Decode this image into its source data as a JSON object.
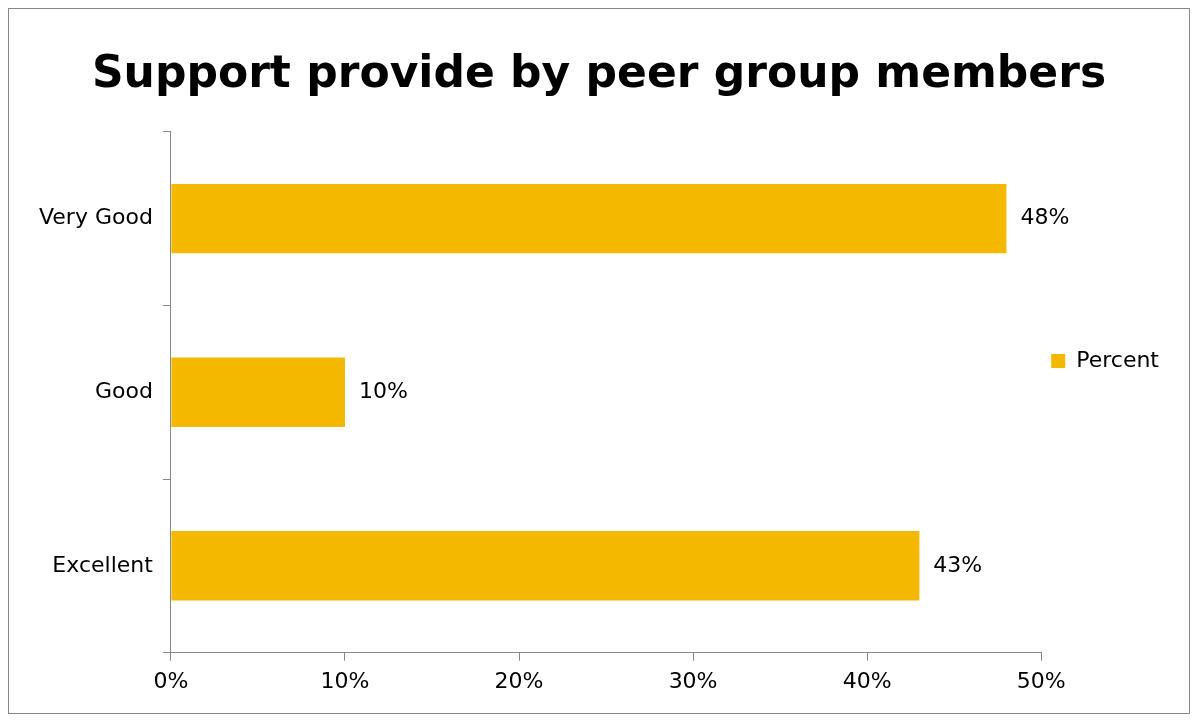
{
  "chart_data": {
    "type": "bar",
    "orientation": "horizontal",
    "title": "Support provide by peer group members",
    "categories": [
      "Very Good",
      "Good",
      "Excellent"
    ],
    "series": [
      {
        "name": "Percent",
        "color": "#f5b800",
        "values": [
          48,
          10,
          43
        ],
        "value_labels": [
          "48%",
          "10%",
          "43%"
        ]
      }
    ],
    "xlim": [
      0,
      50
    ],
    "xticks": [
      {
        "value": 0,
        "label": "0%"
      },
      {
        "value": 10,
        "label": "10%"
      },
      {
        "value": 20,
        "label": "20%"
      },
      {
        "value": 30,
        "label": "30%"
      },
      {
        "value": 40,
        "label": "40%"
      },
      {
        "value": 50,
        "label": "50%"
      }
    ],
    "grid": false,
    "legend": "right"
  }
}
